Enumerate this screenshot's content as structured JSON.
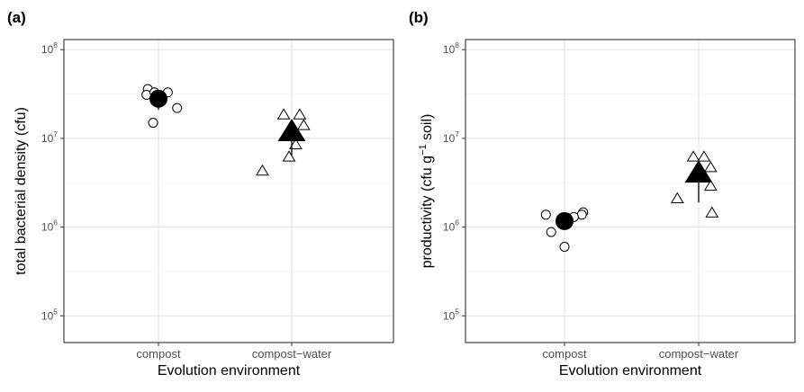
{
  "chart_data": [
    {
      "type": "scatter",
      "panel_label": "(a)",
      "xlabel": "Evolution environment",
      "ylabel": "total bacterial density (cfu)",
      "y_scale": "log10",
      "ylim": [
        50000,
        130000000
      ],
      "y_ticks": [
        {
          "value": 100000,
          "base": "10",
          "exp": "5"
        },
        {
          "value": 1000000,
          "base": "10",
          "exp": "6"
        },
        {
          "value": 10000000,
          "base": "10",
          "exp": "7"
        },
        {
          "value": 100000000,
          "base": "10",
          "exp": "8"
        }
      ],
      "categories": [
        "compost",
        "compost−water"
      ],
      "grid": true,
      "series": [
        {
          "category": "compost",
          "marker": "circle",
          "mean": 28000000,
          "error": [
            21000000,
            35000000
          ],
          "points": [
            {
              "jitter": -0.08,
              "y": 36000000
            },
            {
              "jitter": -0.09,
              "y": 31000000
            },
            {
              "jitter": -0.03,
              "y": 33000000
            },
            {
              "jitter": 0.07,
              "y": 33000000
            },
            {
              "jitter": 0.14,
              "y": 22000000
            },
            {
              "jitter": -0.04,
              "y": 15000000
            }
          ]
        },
        {
          "category": "compost−water",
          "marker": "triangle",
          "mean": 12000000,
          "error": [
            6500000,
            16000000
          ],
          "points": [
            {
              "jitter": -0.06,
              "y": 18500000
            },
            {
              "jitter": 0.06,
              "y": 18500000
            },
            {
              "jitter": 0.09,
              "y": 14000000
            },
            {
              "jitter": 0.03,
              "y": 8500000
            },
            {
              "jitter": -0.02,
              "y": 6200000
            },
            {
              "jitter": -0.22,
              "y": 4300000
            }
          ]
        }
      ]
    },
    {
      "type": "scatter",
      "panel_label": "(b)",
      "xlabel": "Evolution environment",
      "ylabel_parts": {
        "pre": "productivity (cfu g",
        "sup": "−1",
        "post": " soil)"
      },
      "y_scale": "log10",
      "ylim": [
        50000,
        130000000
      ],
      "y_ticks": [
        {
          "value": 100000,
          "base": "10",
          "exp": "5"
        },
        {
          "value": 1000000,
          "base": "10",
          "exp": "6"
        },
        {
          "value": 10000000,
          "base": "10",
          "exp": "7"
        },
        {
          "value": 100000000,
          "base": "10",
          "exp": "8"
        }
      ],
      "categories": [
        "compost",
        "compost−water"
      ],
      "grid": true,
      "series": [
        {
          "category": "compost",
          "marker": "circle",
          "mean": 1170000,
          "error": [
            950000,
            1350000
          ],
          "points": [
            {
              "jitter": -0.14,
              "y": 1380000
            },
            {
              "jitter": 0.14,
              "y": 1470000
            },
            {
              "jitter": 0.13,
              "y": 1380000
            },
            {
              "jitter": 0.07,
              "y": 1300000
            },
            {
              "jitter": -0.1,
              "y": 880000
            },
            {
              "jitter": 0.0,
              "y": 600000
            }
          ]
        },
        {
          "category": "compost−water",
          "marker": "triangle",
          "mean": 4100000,
          "error": [
            1900000,
            5200000
          ],
          "points": [
            {
              "jitter": -0.04,
              "y": 6200000
            },
            {
              "jitter": 0.04,
              "y": 6200000
            },
            {
              "jitter": 0.09,
              "y": 4700000
            },
            {
              "jitter": 0.09,
              "y": 2900000
            },
            {
              "jitter": -0.16,
              "y": 2100000
            },
            {
              "jitter": 0.1,
              "y": 1450000
            }
          ]
        }
      ]
    }
  ]
}
